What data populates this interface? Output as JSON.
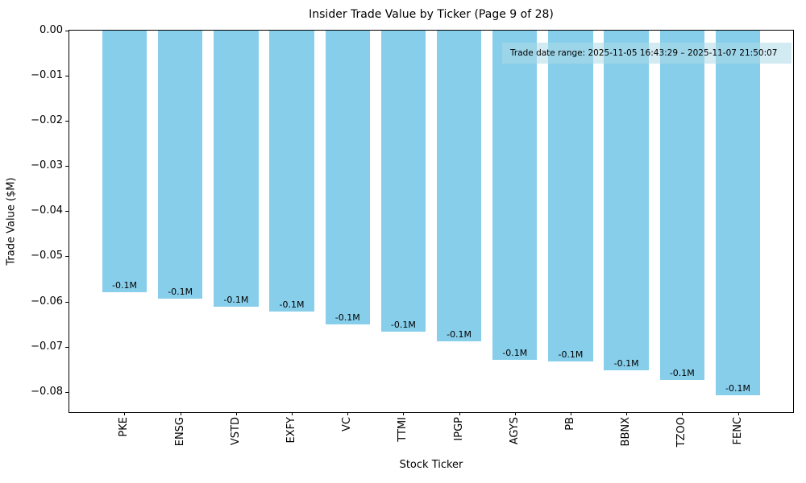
{
  "chart_data": {
    "type": "bar",
    "title": "Insider Trade Value by Ticker (Page 9 of 28)",
    "xlabel": "Stock Ticker",
    "ylabel": "Trade Value ($M)",
    "categories": [
      "PKE",
      "ENSG",
      "VSTD",
      "EXFY",
      "VC",
      "TTMI",
      "IPGP",
      "AGYS",
      "PB",
      "BBNX",
      "TZOO",
      "FENC"
    ],
    "values": [
      -0.058,
      -0.0593,
      -0.0611,
      -0.0622,
      -0.0651,
      -0.0666,
      -0.0688,
      -0.0729,
      -0.0732,
      -0.0753,
      -0.0773,
      -0.0807
    ],
    "bar_labels": [
      "-0.1M",
      "-0.1M",
      "-0.1M",
      "-0.1M",
      "-0.1M",
      "-0.1M",
      "-0.1M",
      "-0.1M",
      "-0.1M",
      "-0.1M",
      "-0.1M",
      "-0.1M"
    ],
    "bar_color": "#87CEEB",
    "ylim": [
      -0.0845,
      0
    ],
    "yticks": [
      0,
      -0.01,
      -0.02,
      -0.03,
      -0.04,
      -0.05,
      -0.06,
      -0.07,
      -0.08
    ],
    "ytick_labels": [
      "0.00",
      "−0.01",
      "−0.02",
      "−0.03",
      "−0.04",
      "−0.05",
      "−0.06",
      "−0.07",
      "−0.08"
    ],
    "grid": false,
    "legend": null,
    "annotation": {
      "text": "Trade date range: 2025-11-05 16:43:29 – 2025-11-07 21:50:07",
      "background": "#ADD8E6"
    }
  }
}
